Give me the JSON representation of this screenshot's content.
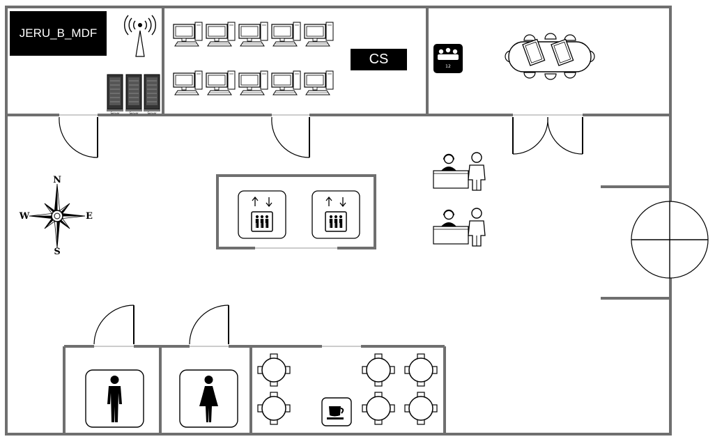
{
  "plan": {
    "rooms": {
      "mdf": {
        "label": "JERU_B_MDF"
      },
      "cs": {
        "label": "CS"
      }
    },
    "compass": {
      "north": "N",
      "south": "S",
      "east": "E",
      "west": "W"
    },
    "server_rack_label": "Server",
    "conference_icon_number": "12",
    "colors": {
      "wall": "#6f6f6f",
      "ink": "#000000",
      "background": "#ffffff"
    }
  }
}
